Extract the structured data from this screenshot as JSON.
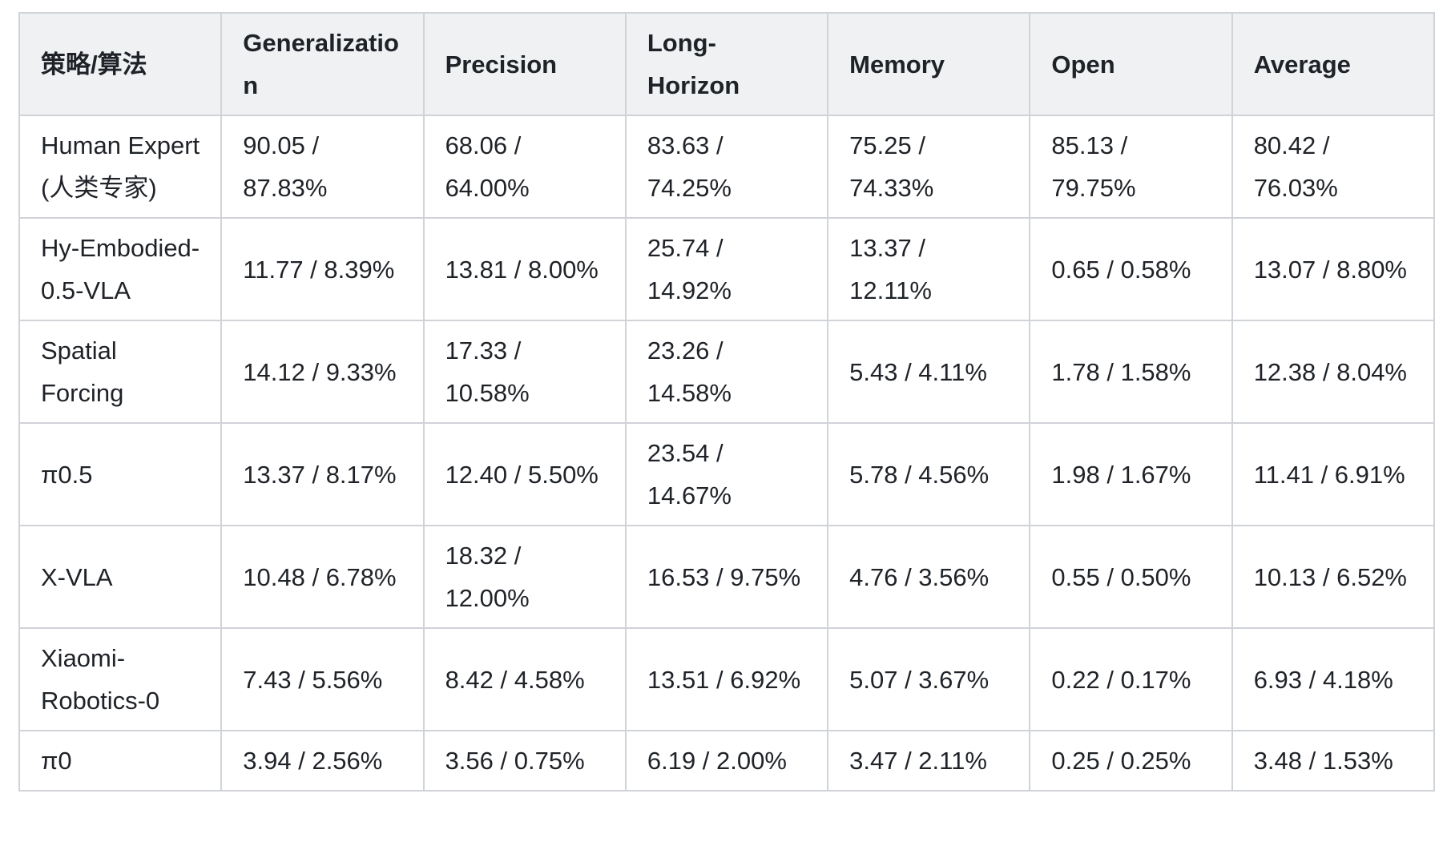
{
  "table": {
    "header": [
      "策略/算法",
      "Generalization",
      "Precision",
      "Long-Horizon",
      "Memory",
      "Open",
      "Average"
    ],
    "rows": [
      [
        "Human Expert (人类专家)",
        "90.05 / 87.83%",
        "68.06 / 64.00%",
        "83.63 / 74.25%",
        "75.25 / 74.33%",
        "85.13 / 79.75%",
        "80.42 / 76.03%"
      ],
      [
        "Hy-Embodied-0.5-VLA",
        "11.77 / 8.39%",
        "13.81 / 8.00%",
        "25.74 / 14.92%",
        "13.37 / 12.11%",
        "0.65 / 0.58%",
        "13.07 / 8.80%"
      ],
      [
        "Spatial Forcing",
        "14.12 / 9.33%",
        "17.33 / 10.58%",
        "23.26 / 14.58%",
        "5.43 / 4.11%",
        "1.78 / 1.58%",
        "12.38 / 8.04%"
      ],
      [
        "π0.5",
        "13.37 / 8.17%",
        "12.40 / 5.50%",
        "23.54 / 14.67%",
        "5.78 / 4.56%",
        "1.98 / 1.67%",
        "11.41 / 6.91%"
      ],
      [
        "X-VLA",
        "10.48 / 6.78%",
        "18.32 / 12.00%",
        "16.53 / 9.75%",
        "4.76 / 3.56%",
        "0.55 / 0.50%",
        "10.13 / 6.52%"
      ],
      [
        "Xiaomi-Robotics-0",
        "7.43 / 5.56%",
        "8.42 / 4.58%",
        "13.51 / 6.92%",
        "5.07 / 3.67%",
        "0.22 / 0.17%",
        "6.93 / 4.18%"
      ],
      [
        "π0",
        "3.94 / 2.56%",
        "3.56 / 0.75%",
        "6.19 / 2.00%",
        "3.47 / 2.11%",
        "0.25 / 0.25%",
        "3.48 / 1.53%"
      ]
    ]
  }
}
